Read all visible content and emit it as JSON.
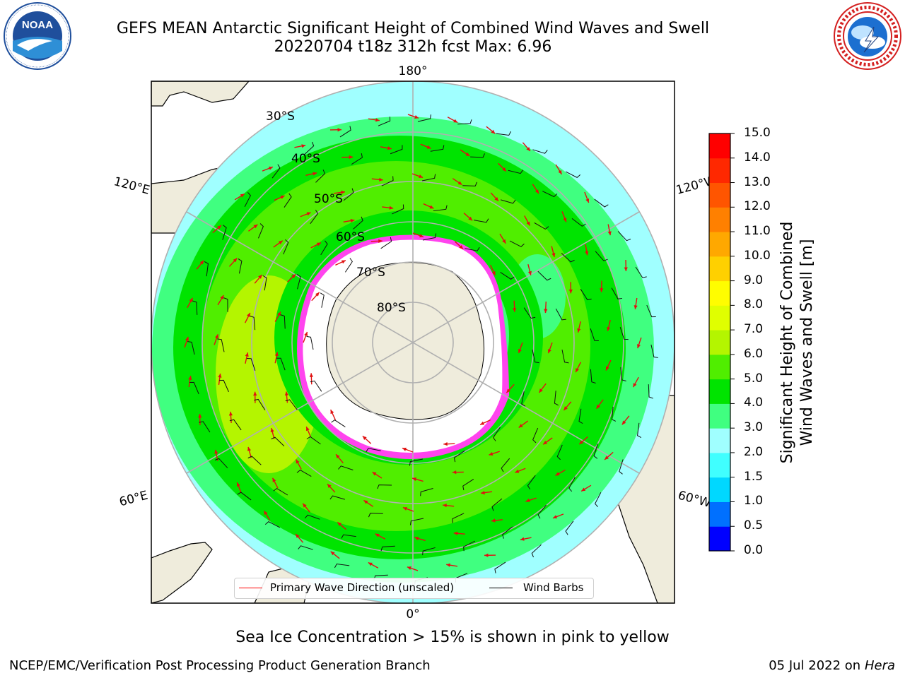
{
  "title": {
    "line1": "GEFS MEAN Antarctic Significant Height of Combined Wind Waves and Swell",
    "line2": "20220704 t18z 312h fcst   Max: 6.96"
  },
  "logos": {
    "left": {
      "icon": "noaa-logo",
      "text": "NOAA"
    },
    "right": {
      "icon": "national-weather-service-logo"
    }
  },
  "map": {
    "longitude_labels": [
      "180°",
      "120°W",
      "60°W",
      "0°",
      "60°E",
      "120°E"
    ],
    "latitude_labels": [
      "30°S",
      "40°S",
      "50°S",
      "60°S",
      "70°S",
      "80°S"
    ],
    "land_color": "#efecdc",
    "ice_colors": [
      "#ff44ee",
      "#ffc040"
    ]
  },
  "colorbar": {
    "title_line1": "Significant Height of Combined",
    "title_line2": "Wind Waves and Swell [m]",
    "ticks": [
      "0.0",
      "0.5",
      "1.0",
      "1.5",
      "2.0",
      "3.0",
      "4.0",
      "5.0",
      "6.0",
      "7.0",
      "8.0",
      "9.0",
      "10.0",
      "11.0",
      "12.0",
      "13.0",
      "14.0",
      "15.0"
    ],
    "colors": [
      "#0000ff",
      "#0070ff",
      "#00d8ff",
      "#40ffff",
      "#a0ffff",
      "#40ff80",
      "#00e400",
      "#50ee00",
      "#b4f500",
      "#e0ff00",
      "#fffd00",
      "#ffd000",
      "#ffa800",
      "#ff8000",
      "#ff5500",
      "#ff2800",
      "#ff0000"
    ]
  },
  "legend": {
    "wave_label": "Primary Wave Direction (unscaled)",
    "wave_color": "#ff0000",
    "barb_label": "Wind Barbs",
    "barb_color": "#000000"
  },
  "note": "Sea Ice Concentration > 15% is shown in pink to yellow",
  "footer": {
    "left": "NCEP/EMC/Verification Post Processing Product Generation Branch",
    "date": "05 Jul 2022 on",
    "machine": "Hera"
  }
}
